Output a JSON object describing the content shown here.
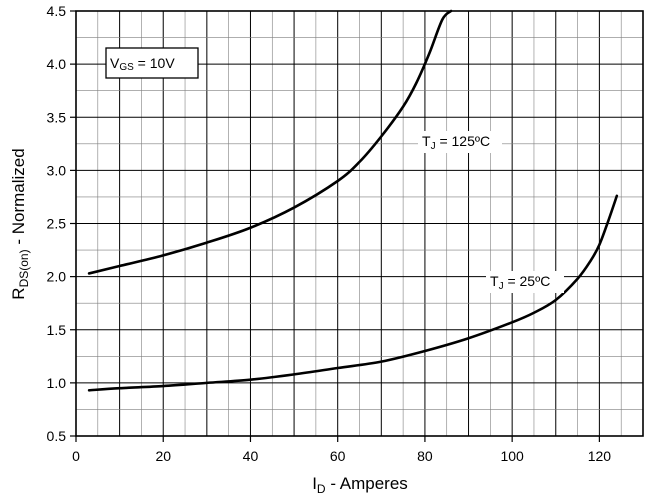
{
  "chart_data": {
    "type": "line",
    "xlim": [
      0,
      130
    ],
    "ylim": [
      0.5,
      4.5
    ],
    "x_ticks": [
      "0",
      "20",
      "40",
      "60",
      "80",
      "100",
      "120"
    ],
    "y_ticks": [
      "0.5",
      "1.0",
      "1.5",
      "2.0",
      "2.5",
      "3.0",
      "3.5",
      "4.0",
      "4.5"
    ],
    "grid": true,
    "xlabel": {
      "main": "I",
      "sub": "D",
      "rest": " - Amperes"
    },
    "ylabel": {
      "main": "R",
      "sub": "DS(on)",
      "rest": " - Normalized"
    },
    "condition_box": {
      "main": "V",
      "sub": "GS",
      "rest": " = 10V"
    },
    "series": [
      {
        "name": {
          "main": "T",
          "sub": "J",
          "rest": " = 125ºC"
        },
        "x": [
          3,
          10,
          20,
          30,
          40,
          50,
          60,
          65,
          70,
          75,
          78,
          81,
          84,
          86
        ],
        "y": [
          2.03,
          2.1,
          2.2,
          2.32,
          2.46,
          2.65,
          2.9,
          3.08,
          3.32,
          3.6,
          3.82,
          4.1,
          4.42,
          4.5
        ]
      },
      {
        "name": {
          "main": "T",
          "sub": "J",
          "rest": " = 25ºC"
        },
        "x": [
          3,
          10,
          20,
          30,
          40,
          50,
          60,
          70,
          80,
          90,
          100,
          105,
          110,
          115,
          118,
          120,
          122,
          124
        ],
        "y": [
          0.93,
          0.95,
          0.97,
          1.0,
          1.03,
          1.08,
          1.14,
          1.2,
          1.3,
          1.42,
          1.57,
          1.66,
          1.78,
          1.98,
          2.15,
          2.3,
          2.52,
          2.76
        ]
      }
    ]
  }
}
